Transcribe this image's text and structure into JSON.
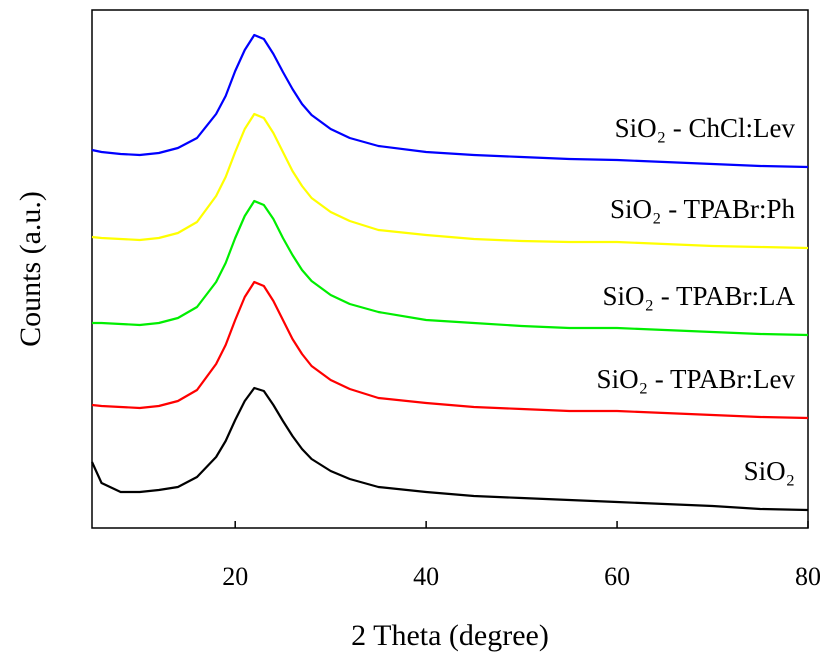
{
  "chart_data": {
    "type": "line",
    "xlabel": "2 Theta (degree)",
    "ylabel": "Counts (a.u.)",
    "x": [
      5,
      6,
      8,
      10,
      12,
      14,
      16,
      18,
      19,
      20,
      21,
      22,
      23,
      24,
      25,
      26,
      27,
      28,
      30,
      32,
      35,
      40,
      45,
      50,
      55,
      60,
      65,
      70,
      75,
      80
    ],
    "xlim": [
      5,
      80
    ],
    "xticks": [
      20,
      40,
      60,
      80
    ],
    "ylim": [
      0,
      518
    ],
    "series": [
      {
        "name": "SiO₂ - ChCl:Lev",
        "color": "#0000ff",
        "values": [
          378,
          376,
          374,
          373,
          375,
          380,
          390,
          414,
          432,
          457,
          478,
          493,
          489,
          474,
          456,
          439,
          424,
          413,
          399,
          390,
          382,
          376,
          373,
          371,
          369,
          368,
          366,
          364,
          362,
          361
        ]
      },
      {
        "name": "SiO₂ - TPABr:Ph",
        "color": "#ffff00",
        "values": [
          291,
          290,
          289,
          288,
          290,
          295,
          306,
          332,
          351,
          376,
          399,
          414,
          410,
          395,
          376,
          357,
          342,
          330,
          316,
          307,
          298,
          293,
          289,
          287,
          286,
          286,
          284,
          282,
          281,
          280
        ]
      },
      {
        "name": "SiO₂ - TPABr:LA",
        "color": "#00ee00",
        "values": [
          205,
          205,
          204,
          203,
          205,
          210,
          221,
          246,
          265,
          290,
          312,
          327,
          323,
          309,
          290,
          273,
          258,
          247,
          233,
          224,
          216,
          208,
          205,
          202,
          200,
          200,
          198,
          196,
          194,
          193
        ]
      },
      {
        "name": "SiO₂ - TPABr:Lev",
        "color": "#ff0000",
        "values": [
          123,
          122,
          121,
          120,
          122,
          127,
          138,
          164,
          183,
          208,
          231,
          246,
          242,
          227,
          208,
          189,
          174,
          162,
          148,
          139,
          130,
          125,
          121,
          119,
          117,
          117,
          115,
          113,
          111,
          110
        ]
      },
      {
        "name": "SiO₂",
        "color": "#000000",
        "values": [
          66,
          45,
          36,
          36,
          38,
          41,
          51,
          71,
          87,
          108,
          127,
          140,
          137,
          123,
          107,
          92,
          79,
          69,
          57,
          49,
          41,
          36,
          32,
          30,
          28,
          26,
          24,
          22,
          19,
          18
        ]
      }
    ]
  }
}
